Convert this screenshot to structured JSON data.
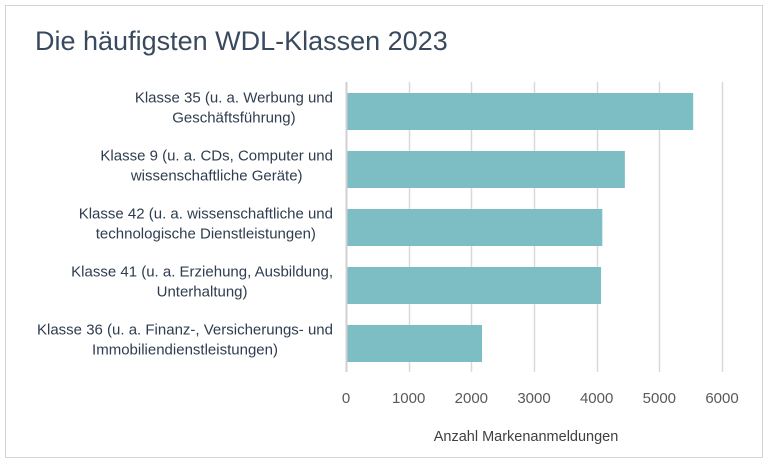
{
  "chart_data": {
    "type": "bar",
    "orientation": "horizontal",
    "title": "Die häufigsten WDL-Klassen 2023",
    "xlabel": "Anzahl Markenanmeldungen",
    "ylabel": "",
    "xlim": [
      0,
      6000
    ],
    "x_ticks": [
      0,
      1000,
      2000,
      3000,
      4000,
      5000,
      6000
    ],
    "x_tick_labels": [
      "0",
      "1000",
      "2000",
      "3000",
      "4000",
      "5000",
      "6000"
    ],
    "grid": "vertical",
    "legend": "none",
    "bar_color": "#7dbdc4",
    "categories": [
      [
        "Klasse 35 (u. a. Werbung und",
        "Geschäftsführung)"
      ],
      [
        "Klasse 9 (u. a. CDs, Computer und",
        "wissenschaftliche Geräte)"
      ],
      [
        "Klasse 42 (u. a. wissenschaftliche und",
        "technologische Dienstleistungen)"
      ],
      [
        "Klasse 41 (u. a. Erziehung, Ausbildung,",
        "Unterhaltung)"
      ],
      [
        "Klasse 36 (u. a. Finanz-, Versicherungs- und",
        "Immobiliendienstleistungen)"
      ]
    ],
    "values": [
      5540,
      4450,
      4090,
      4070,
      2170
    ]
  }
}
